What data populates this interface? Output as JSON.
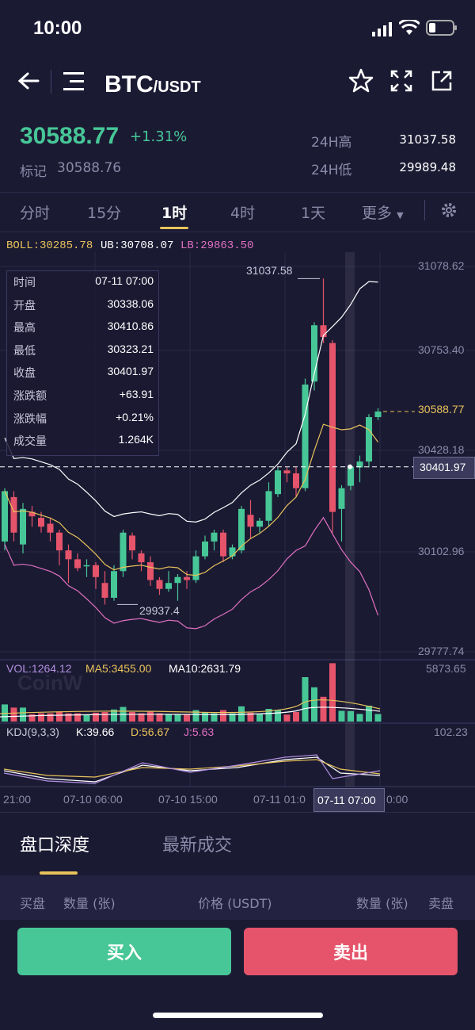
{
  "status_bar": {
    "time": "10:00"
  },
  "header": {
    "base": "BTC",
    "quote": "/USDT"
  },
  "ticker": {
    "last_price": "30588.77",
    "change_pct": "+1.31%",
    "mark_label": "标记",
    "mark_price": "30588.76",
    "high_label": "24H高",
    "high_value": "31037.58",
    "low_label": "24H低",
    "low_value": "29989.48"
  },
  "intervals": [
    {
      "label": "分时",
      "active": false
    },
    {
      "label": "15分",
      "active": false
    },
    {
      "label": "1时",
      "active": true
    },
    {
      "label": "4时",
      "active": false
    },
    {
      "label": "1天",
      "active": false
    },
    {
      "label": "更多",
      "active": false
    }
  ],
  "indicators": {
    "boll": "BOLL:30285.78",
    "ub": "UB:30708.07",
    "lb": "LB:29863.50"
  },
  "info_panel": [
    {
      "k": "时间",
      "v": "07-11 07:00"
    },
    {
      "k": "开盘",
      "v": "30338.06"
    },
    {
      "k": "最高",
      "v": "30410.86"
    },
    {
      "k": "最低",
      "v": "30323.21"
    },
    {
      "k": "收盘",
      "v": "30401.97"
    },
    {
      "k": "涨跌额",
      "v": "+63.91"
    },
    {
      "k": "涨跌幅",
      "v": "+0.21%"
    },
    {
      "k": "成交量",
      "v": "1.264K"
    }
  ],
  "price_axis": [
    "31078.62",
    "30753.40",
    "30428.18",
    "30102.96",
    "29777.74"
  ],
  "markers": {
    "high": "31037.58",
    "low": "29937.4",
    "last": "30588.77",
    "crosshair": "30401.97"
  },
  "volume": {
    "vol": "VOL:1264.12",
    "ma5": "MA5:3455.00",
    "ma10": "MA10:2631.79",
    "max": "5873.65",
    "watermark": "CoinW"
  },
  "kdj": {
    "label": "KDJ(9,3,3)",
    "k": "K:39.66",
    "d": "D:56.67",
    "j": "J:5.63",
    "max": "102.23"
  },
  "x_axis": [
    "21:00",
    "07-10 06:00",
    "07-10 15:00",
    "07-11 01:0",
    "07-11 07:00",
    "0:00"
  ],
  "orderbook": {
    "tab_depth": "盘口深度",
    "tab_trades": "最新成交",
    "col_bid": "买盘",
    "col_qty_left": "数量 (张)",
    "col_price": "价格 (USDT)",
    "col_qty_right": "数量 (张)",
    "col_ask": "卖盘"
  },
  "actions": {
    "buy": "买入",
    "sell": "卖出"
  },
  "colors": {
    "up": "#47c797",
    "down": "#e5546a",
    "accent": "#e8c35a",
    "bg": "#1b1a33"
  },
  "chart_data": {
    "type": "candlestick",
    "series": [
      {
        "name": "candles",
        "values": [
          [
            30150,
            30320,
            30120,
            30330
          ],
          [
            30300,
            30180,
            30150,
            30320
          ],
          [
            30140,
            30260,
            30110,
            30280
          ],
          [
            30250,
            30235,
            30200,
            30270
          ],
          [
            30230,
            30200,
            30180,
            30250
          ],
          [
            30210,
            30180,
            30150,
            30230
          ],
          [
            30180,
            30120,
            30070,
            30190
          ],
          [
            30120,
            30090,
            30010,
            30140
          ],
          [
            30090,
            30060,
            30050,
            30110
          ],
          [
            30070,
            30070,
            30030,
            30090
          ],
          [
            30070,
            30030,
            29990,
            30080
          ],
          [
            30010,
            29960,
            29937.4,
            30050
          ],
          [
            29960,
            30050,
            29950,
            30070
          ],
          [
            30050,
            30180,
            30030,
            30190
          ],
          [
            30170,
            30120,
            30090,
            30180
          ],
          [
            30110,
            30080,
            30050,
            30120
          ],
          [
            30080,
            30020,
            30000,
            30100
          ],
          [
            30020,
            29990,
            29970,
            30030
          ],
          [
            29990,
            30010,
            29980,
            30050
          ],
          [
            30010,
            30030,
            29950,
            30040
          ],
          [
            30030,
            30020,
            29990,
            30050
          ],
          [
            30020,
            30100,
            30010,
            30120
          ],
          [
            30100,
            30150,
            30090,
            30170
          ],
          [
            30150,
            30180,
            30120,
            30190
          ],
          [
            30180,
            30100,
            30080,
            30190
          ],
          [
            30100,
            30130,
            30090,
            30140
          ],
          [
            30120,
            30260,
            30110,
            30270
          ],
          [
            30240,
            30200,
            30160,
            30290
          ],
          [
            30200,
            30220,
            30180,
            30230
          ],
          [
            30220,
            30320,
            30200,
            30350
          ],
          [
            30310,
            30390,
            30300,
            30400
          ],
          [
            30390,
            30380,
            30350,
            30400
          ],
          [
            30380,
            30330,
            30300,
            30400
          ],
          [
            30330,
            30680,
            30320,
            30700
          ],
          [
            30690,
            30880,
            30660,
            30890
          ],
          [
            30880,
            30840,
            30820,
            31037.58
          ],
          [
            30820,
            30250,
            30180,
            30830
          ],
          [
            30260,
            30330,
            30150,
            30340
          ],
          [
            30338.06,
            30401.97,
            30323.21,
            30410.86
          ],
          [
            30400,
            30420,
            30350,
            30440
          ],
          [
            30420,
            30570,
            30400,
            30580
          ],
          [
            30570,
            30588.77,
            30560,
            30600
          ]
        ]
      }
    ],
    "ylim": [
      29777.74,
      31078.62
    ]
  }
}
